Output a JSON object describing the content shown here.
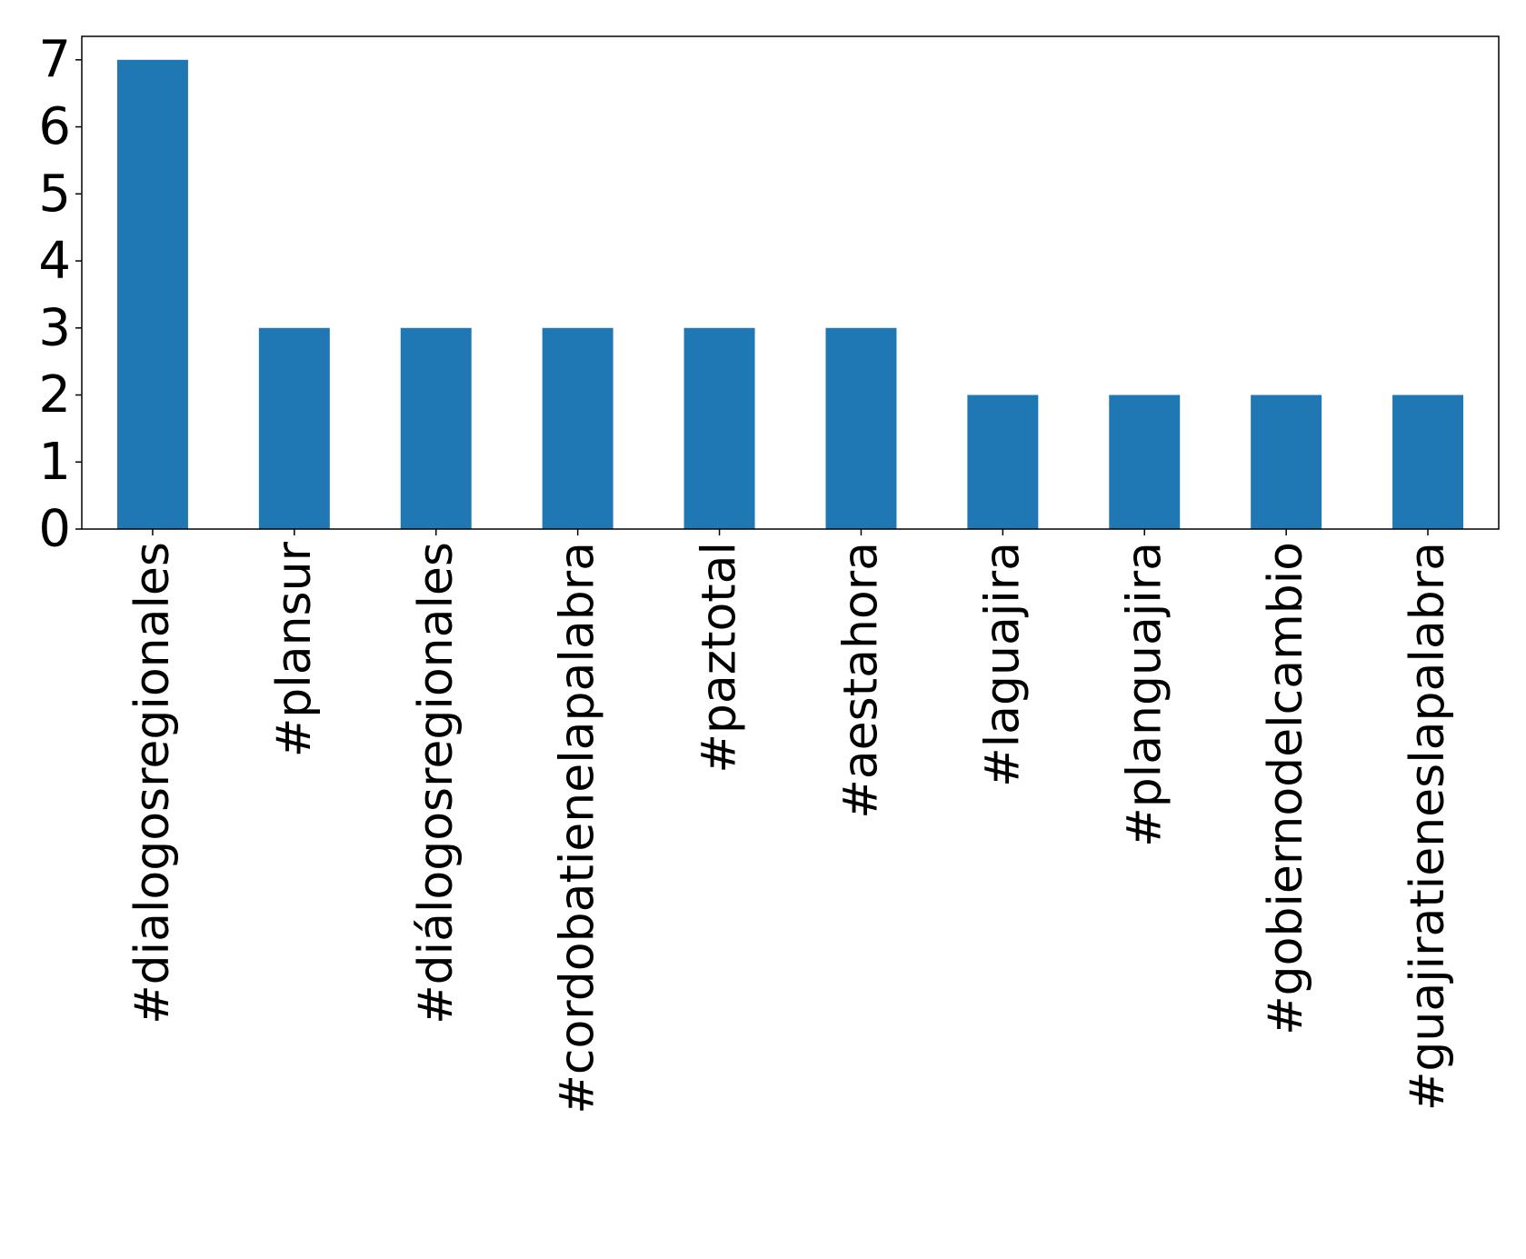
{
  "chart_data": {
    "type": "bar",
    "categories": [
      "#dialogosregionales",
      "#plansur",
      "#diálogosregionales",
      "#cordobatienelapalabra",
      "#paztotal",
      "#aestahora",
      "#laguajira",
      "#planguajira",
      "#gobiernodelcambio",
      "#guajiratieneslapalabra"
    ],
    "values": [
      7,
      3,
      3,
      3,
      3,
      3,
      2,
      2,
      2,
      2
    ],
    "title": "",
    "xlabel": "",
    "ylabel": "",
    "ylim": [
      0,
      7.35
    ],
    "yticks": [
      0,
      1,
      2,
      3,
      4,
      5,
      6,
      7
    ],
    "grid": false,
    "legend": "none",
    "colors": {
      "bar": "#1f77b4",
      "axis": "#000000",
      "background": "#ffffff"
    }
  }
}
